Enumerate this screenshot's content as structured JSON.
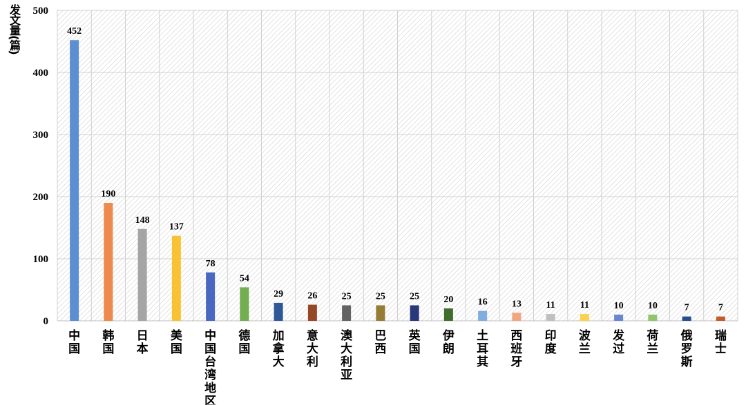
{
  "chart_data": {
    "type": "bar",
    "title": "",
    "xlabel": "",
    "ylabel": "发文量(篇)",
    "ylim": [
      0,
      500
    ],
    "yticks": [
      0,
      100,
      200,
      300,
      400,
      500
    ],
    "grid": true,
    "legend": "none",
    "categories": [
      "中国",
      "韩国",
      "日本",
      "美国",
      "中国台湾地区",
      "德国",
      "加拿大",
      "意大利",
      "澳大利亚",
      "巴西",
      "英国",
      "伊朗",
      "土耳其",
      "西班牙",
      "印度",
      "波兰",
      "发过",
      "荷兰",
      "俄罗斯",
      "瑞士"
    ],
    "values": [
      452,
      190,
      148,
      137,
      78,
      54,
      29,
      26,
      25,
      25,
      25,
      20,
      16,
      13,
      11,
      11,
      10,
      10,
      7,
      7
    ],
    "colors": [
      "#5b8fd1",
      "#ee8a4d",
      "#a5a5a5",
      "#f9c232",
      "#4a68bf",
      "#72ad4f",
      "#2e5897",
      "#954823",
      "#636363",
      "#967c35",
      "#28387a",
      "#3e6d2e",
      "#80aee0",
      "#f1a682",
      "#bfbfbf",
      "#fbd24d",
      "#6887cc",
      "#92c46d",
      "#2a4e8c",
      "#c25c2c"
    ]
  }
}
